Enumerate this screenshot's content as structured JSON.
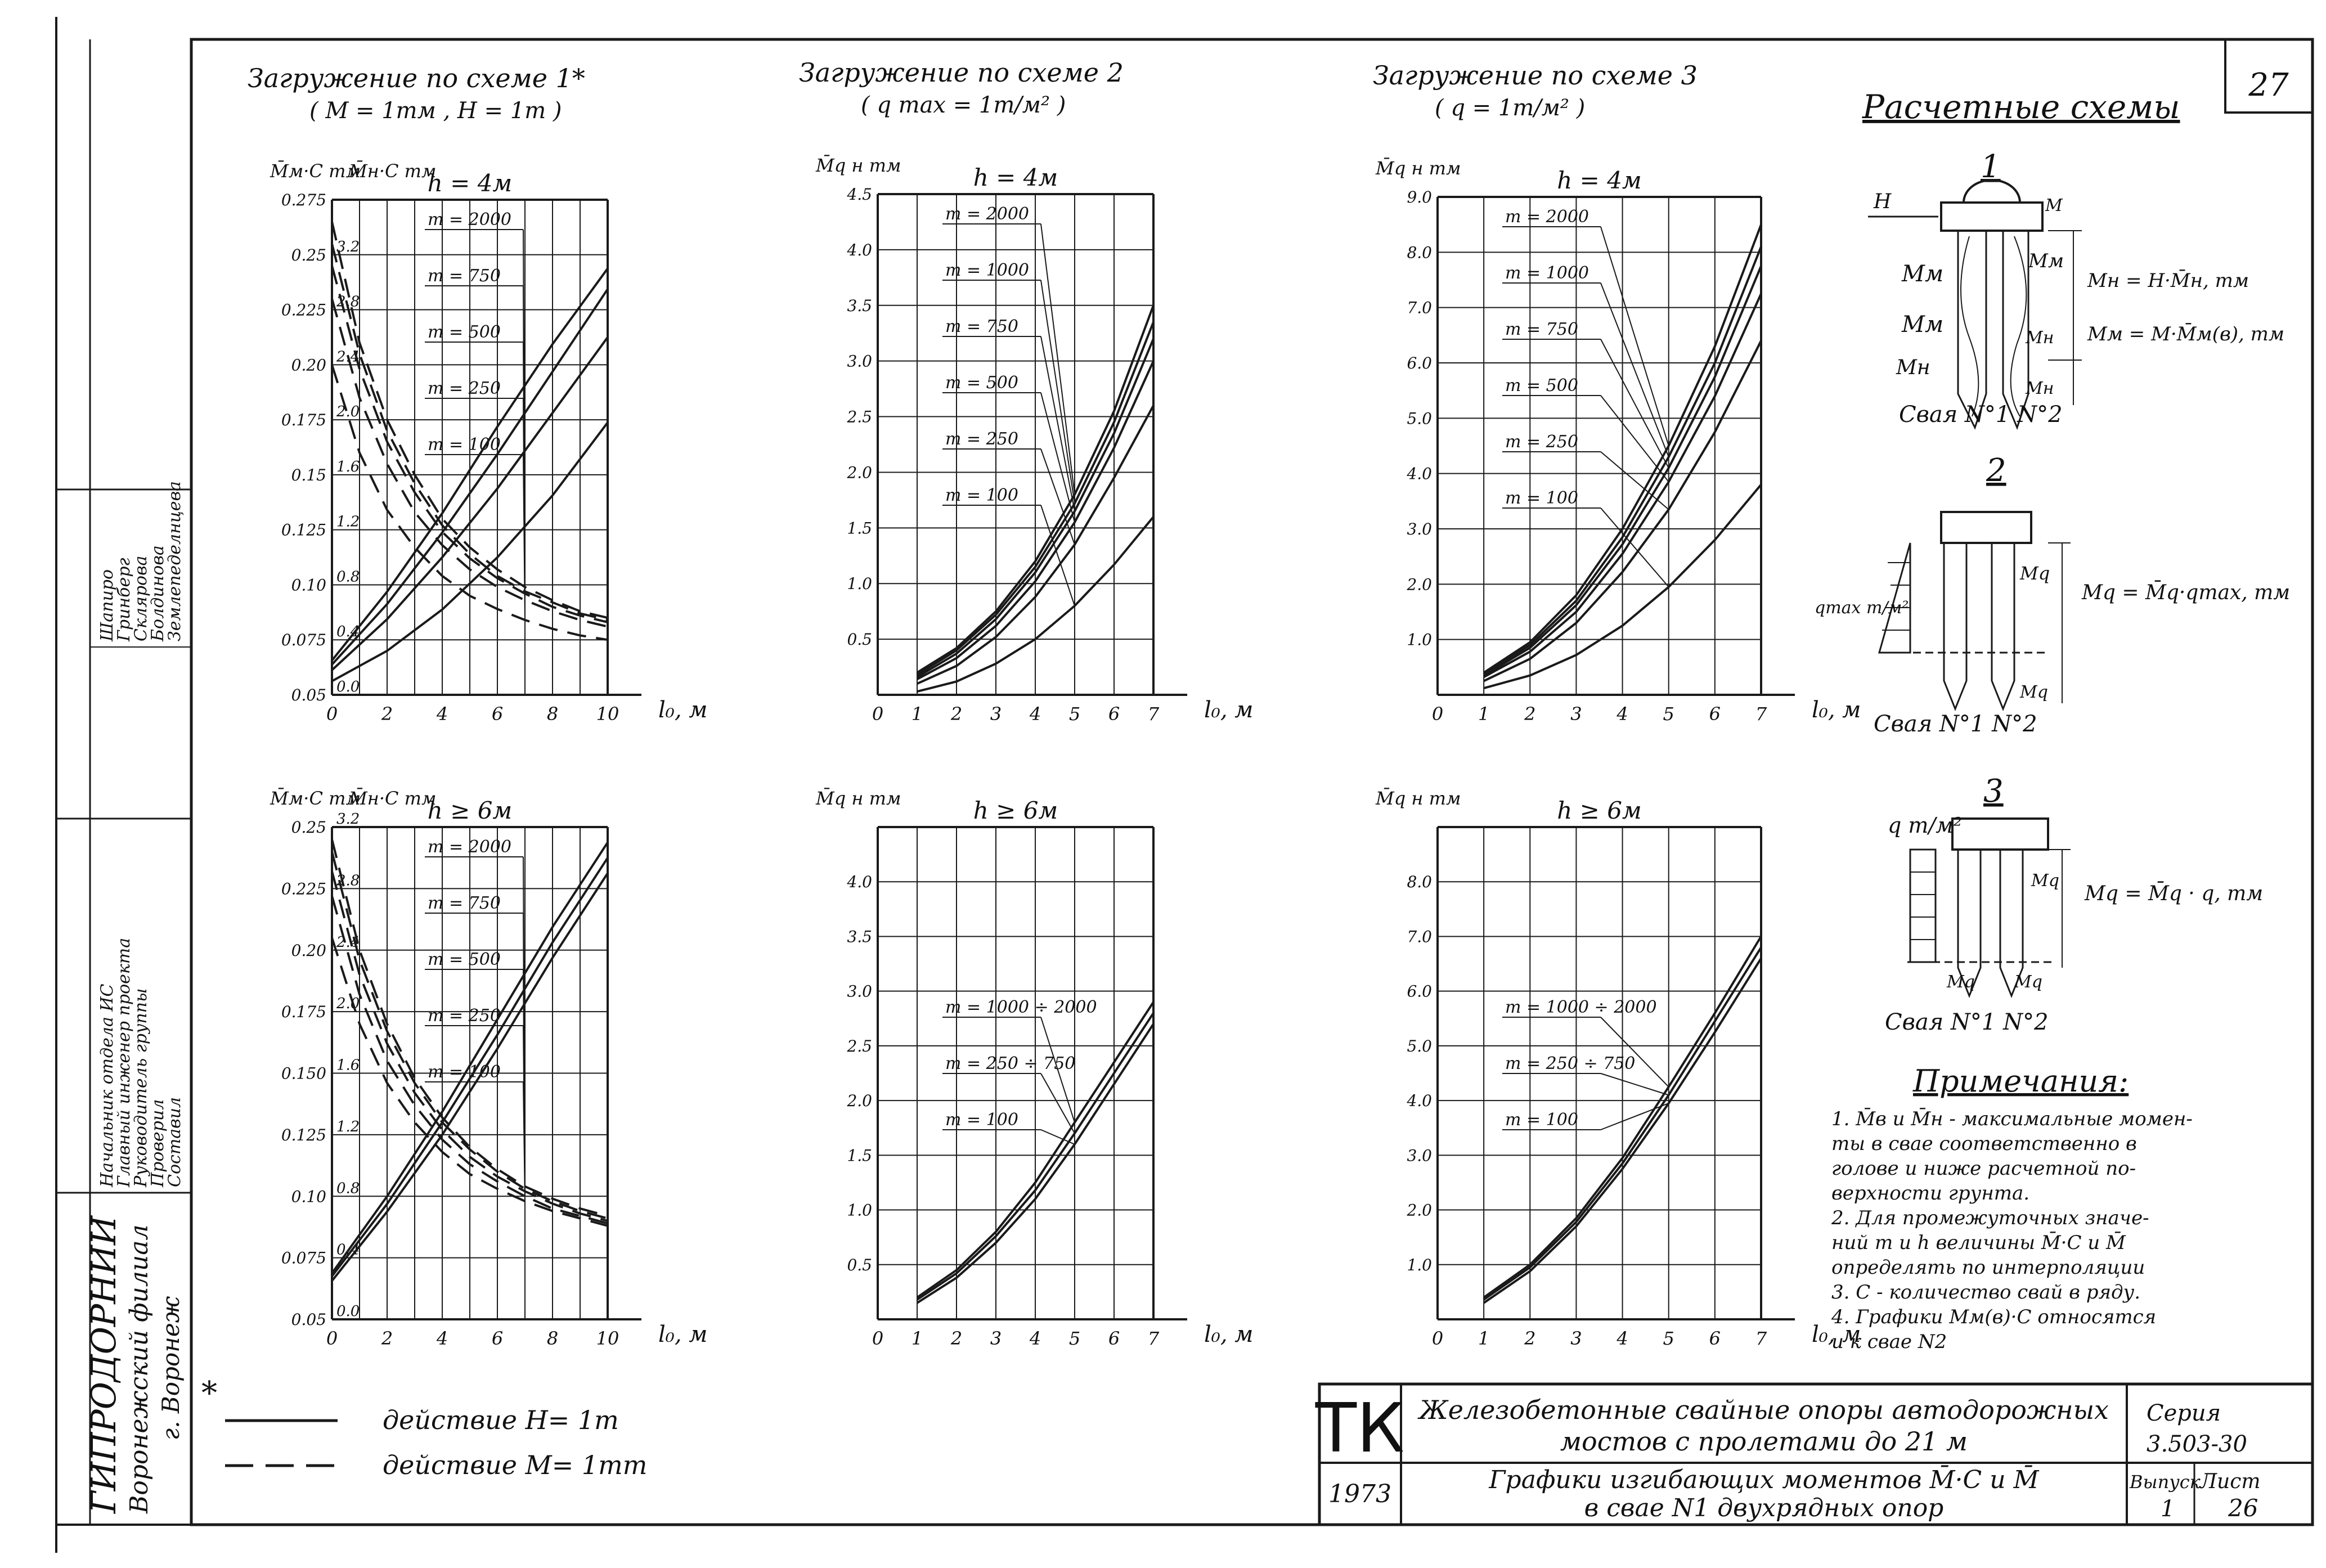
{
  "sheet": {
    "page_number": "27",
    "titleblock": {
      "org": "ГИПРОДОРНИИ",
      "branch": "Воронежский филиал",
      "city": "г. Воронеж",
      "roles": [
        "Начальник отдела ИС",
        "Главный инженер проекта",
        "Руководитель группы",
        "Проверил",
        "Составил"
      ],
      "names": [
        "Шапиро",
        "Гринберг",
        "Склярова",
        "Болдинова",
        "Землепеделнцева"
      ],
      "tk": "ТК",
      "year": "1973",
      "title_line1": "Железобетонные свайные опоры автодорожных",
      "title_line2": "мостов с пролетами до 21 м",
      "subtitle_line1": "Графики изгибающих моментов M̄·C и M̄",
      "subtitle_line2": "в свае N1 двухрядных опор",
      "series_label": "Серия",
      "series_value": "3.503-30",
      "issue_label": "Выпуск",
      "issue_value": "1",
      "sheet_label": "Лист",
      "sheet_value": "26"
    },
    "legend": {
      "marker": "*",
      "solid_text": "действие H= 1m",
      "dashed_text": "действие M= 1mm"
    },
    "schemes": {
      "header": "Расчетные схемы",
      "s1_num": "1",
      "s1_eq1": "Mн = H·M̄н, mм",
      "s1_eq2": "Mм = M·M̄м(в), mм",
      "s1_caption": "Свая N°1  N°2",
      "s2_num": "2",
      "s2_eq": "Mq = M̄q·qmax, mм",
      "s2_load": "qmax т/м²",
      "s2_caption": "Свая N°1  N°2",
      "s3_num": "3",
      "s3_eq": "Mq = M̄q · q, mм",
      "s3_load": "q т/м²",
      "s3_caption": "Свая N°1  N°2"
    },
    "notes": {
      "header": "Примечания:",
      "lines": [
        "1. M̄в и M̄н - максимальные момен-",
        "   ты в свае соответственно в",
        "   голове и ниже расчетной по-",
        "   верхности грунта.",
        "2. Для промежуточных значе-",
        "   ний m и h величины M̄·C и M̄",
        "   определять по интерполяции",
        "3. C - количество свай в ряду.",
        "4. Графики Mм(в)·C относятся",
        "   и к свае N2"
      ]
    }
  },
  "chart_data": [
    {
      "type": "line",
      "id": "s1_h4",
      "title": "Загружение по схеме 1*",
      "subtitle": "( M = 1mм ,  H = 1m )",
      "h_label": "h = 4м",
      "ylabel_left": "M̄м·C  mм",
      "ylabel_right": "M̄н·C  mм",
      "xlabel": "l₀, м",
      "xlim": [
        0,
        10
      ],
      "ylim": [
        0.05,
        0.275
      ],
      "x_ticks": [
        0,
        2,
        4,
        6,
        8,
        10
      ],
      "y_ticks": [
        "0.05",
        "0.075",
        "0.10",
        "0.125",
        "0.15",
        "0.175",
        "0.20",
        "0.225",
        "0.25",
        "0.275"
      ],
      "y2_ticks": [
        "0.0",
        "0.4",
        "0.8",
        "1.2",
        "1.6",
        "2.0",
        "2.4",
        "2.8",
        "3.2"
      ],
      "series": [
        {
          "name": "m = 2000",
          "style": "dashed",
          "x": [
            0,
            1,
            2,
            3,
            4,
            5,
            6,
            7,
            8,
            9,
            10
          ],
          "y": [
            0.265,
            0.21,
            0.175,
            0.15,
            0.13,
            0.117,
            0.107,
            0.099,
            0.093,
            0.088,
            0.085
          ]
        },
        {
          "name": "m = 750",
          "style": "dashed",
          "x": [
            0,
            1,
            2,
            3,
            4,
            5,
            6,
            7,
            8,
            9,
            10
          ],
          "y": [
            0.255,
            0.205,
            0.17,
            0.146,
            0.127,
            0.114,
            0.104,
            0.097,
            0.092,
            0.087,
            0.084
          ]
        },
        {
          "name": "m = 500",
          "style": "dashed",
          "x": [
            0,
            1,
            2,
            3,
            4,
            5,
            6,
            7,
            8,
            9,
            10
          ],
          "y": [
            0.245,
            0.198,
            0.165,
            0.142,
            0.124,
            0.112,
            0.103,
            0.096,
            0.09,
            0.086,
            0.083
          ]
        },
        {
          "name": "m = 250",
          "style": "dashed",
          "x": [
            0,
            1,
            2,
            3,
            4,
            5,
            6,
            7,
            8,
            9,
            10
          ],
          "y": [
            0.23,
            0.185,
            0.155,
            0.133,
            0.118,
            0.107,
            0.099,
            0.093,
            0.088,
            0.084,
            0.081
          ]
        },
        {
          "name": "m = 100",
          "style": "dashed",
          "x": [
            0,
            1,
            2,
            3,
            4,
            5,
            6,
            7,
            8,
            9,
            10
          ],
          "y": [
            0.2,
            0.16,
            0.134,
            0.117,
            0.104,
            0.095,
            0.089,
            0.084,
            0.08,
            0.077,
            0.075
          ]
        },
        {
          "name": "",
          "style": "solid",
          "axis": "right",
          "x": [
            0,
            2,
            4,
            6,
            8,
            10
          ],
          "y": [
            0.25,
            0.75,
            1.32,
            1.95,
            2.55,
            3.1
          ]
        },
        {
          "name": "",
          "style": "solid",
          "axis": "right",
          "x": [
            0,
            2,
            4,
            6,
            8,
            10
          ],
          "y": [
            0.22,
            0.66,
            1.18,
            1.75,
            2.35,
            2.95
          ]
        },
        {
          "name": "",
          "style": "solid",
          "axis": "right",
          "x": [
            0,
            2,
            4,
            6,
            8,
            10
          ],
          "y": [
            0.18,
            0.55,
            1.0,
            1.5,
            2.05,
            2.6
          ]
        },
        {
          "name": "",
          "style": "solid",
          "axis": "right",
          "x": [
            0,
            2,
            4,
            6,
            8,
            10
          ],
          "y": [
            0.1,
            0.32,
            0.62,
            1.0,
            1.45,
            1.98
          ]
        }
      ]
    },
    {
      "type": "line",
      "id": "s2_h4",
      "title": "Загружение по схеме 2",
      "subtitle": "( q max = 1m/м² )",
      "h_label": "h = 4м",
      "ylabel_left": "M̄q н  mм",
      "xlabel": "l₀, м",
      "xlim": [
        0,
        7
      ],
      "ylim": [
        0,
        4.5
      ],
      "x_ticks": [
        0,
        1,
        2,
        3,
        4,
        5,
        6,
        7
      ],
      "y_ticks": [
        "0.5",
        "1.0",
        "1.5",
        "2.0",
        "2.5",
        "3.0",
        "3.5",
        "4.0",
        "4.5"
      ],
      "series": [
        {
          "name": "m = 2000",
          "x": [
            1,
            2,
            3,
            4,
            5,
            6,
            7
          ],
          "y": [
            0.2,
            0.42,
            0.75,
            1.2,
            1.8,
            2.55,
            3.5
          ]
        },
        {
          "name": "m = 1000",
          "x": [
            1,
            2,
            3,
            4,
            5,
            6,
            7
          ],
          "y": [
            0.18,
            0.4,
            0.72,
            1.15,
            1.72,
            2.45,
            3.35
          ]
        },
        {
          "name": "m = 750",
          "x": [
            1,
            2,
            3,
            4,
            5,
            6,
            7
          ],
          "y": [
            0.16,
            0.37,
            0.68,
            1.1,
            1.65,
            2.35,
            3.2
          ]
        },
        {
          "name": "m = 500",
          "x": [
            1,
            2,
            3,
            4,
            5,
            6,
            7
          ],
          "y": [
            0.14,
            0.33,
            0.62,
            1.02,
            1.55,
            2.22,
            3.0
          ]
        },
        {
          "name": "m = 250",
          "x": [
            1,
            2,
            3,
            4,
            5,
            6,
            7
          ],
          "y": [
            0.1,
            0.26,
            0.52,
            0.88,
            1.35,
            1.95,
            2.6
          ]
        },
        {
          "name": "m = 100",
          "x": [
            1,
            2,
            3,
            4,
            5,
            6,
            7
          ],
          "y": [
            0.03,
            0.12,
            0.28,
            0.5,
            0.8,
            1.17,
            1.6
          ]
        }
      ]
    },
    {
      "type": "line",
      "id": "s3_h4",
      "title": "Загружение по схеме 3",
      "subtitle": "( q = 1m/м² )",
      "h_label": "h = 4м",
      "ylabel_left": "M̄q н  mм",
      "xlabel": "l₀, м",
      "xlim": [
        0,
        7
      ],
      "ylim": [
        0,
        9.0
      ],
      "x_ticks": [
        0,
        1,
        2,
        3,
        4,
        5,
        6,
        7
      ],
      "y_ticks": [
        "1.0",
        "2.0",
        "3.0",
        "4.0",
        "5.0",
        "6.0",
        "7.0",
        "8.0",
        "9.0"
      ],
      "series": [
        {
          "name": "m = 2000",
          "x": [
            1,
            2,
            3,
            4,
            5,
            6,
            7
          ],
          "y": [
            0.4,
            0.95,
            1.8,
            3.0,
            4.5,
            6.3,
            8.5
          ]
        },
        {
          "name": "m = 1000",
          "x": [
            1,
            2,
            3,
            4,
            5,
            6,
            7
          ],
          "y": [
            0.38,
            0.9,
            1.7,
            2.85,
            4.3,
            6.0,
            8.1
          ]
        },
        {
          "name": "m = 750",
          "x": [
            1,
            2,
            3,
            4,
            5,
            6,
            7
          ],
          "y": [
            0.35,
            0.85,
            1.62,
            2.72,
            4.1,
            5.75,
            7.75
          ]
        },
        {
          "name": "m = 500",
          "x": [
            1,
            2,
            3,
            4,
            5,
            6,
            7
          ],
          "y": [
            0.32,
            0.78,
            1.5,
            2.55,
            3.85,
            5.4,
            7.25
          ]
        },
        {
          "name": "m = 250",
          "x": [
            1,
            2,
            3,
            4,
            5,
            6,
            7
          ],
          "y": [
            0.25,
            0.65,
            1.3,
            2.22,
            3.35,
            4.75,
            6.4
          ]
        },
        {
          "name": "m = 100",
          "x": [
            1,
            2,
            3,
            4,
            5,
            6,
            7
          ],
          "y": [
            0.12,
            0.35,
            0.72,
            1.25,
            1.95,
            2.8,
            3.8
          ]
        }
      ]
    },
    {
      "type": "line",
      "id": "s1_h6",
      "title": "",
      "h_label": "h ≥ 6м",
      "ylabel_left": "M̄м·C  mм",
      "ylabel_right": "M̄н·C  mм",
      "xlabel": "l₀, м",
      "xlim": [
        0,
        10
      ],
      "ylim": [
        0.05,
        0.25
      ],
      "x_ticks": [
        0,
        2,
        4,
        6,
        8,
        10
      ],
      "y_ticks": [
        "0.05",
        "0.075",
        "0.10",
        "0.125",
        "0.150",
        "0.175",
        "0.20",
        "0.225",
        "0.25"
      ],
      "y2_ticks": [
        "0.0",
        "0.4",
        "0.8",
        "1.2",
        "1.6",
        "2.0",
        "2.4",
        "2.8",
        "3.2"
      ],
      "series": [
        {
          "name": "m = 2000",
          "style": "dashed",
          "x": [
            0,
            1,
            2,
            3,
            4,
            5,
            6,
            7,
            8,
            9,
            10
          ],
          "y": [
            0.245,
            0.2,
            0.17,
            0.148,
            0.132,
            0.12,
            0.111,
            0.104,
            0.099,
            0.095,
            0.092
          ]
        },
        {
          "name": "m = 750",
          "style": "dashed",
          "x": [
            0,
            1,
            2,
            3,
            4,
            5,
            6,
            7,
            8,
            9,
            10
          ],
          "y": [
            0.24,
            0.196,
            0.167,
            0.146,
            0.13,
            0.119,
            0.11,
            0.103,
            0.098,
            0.094,
            0.091
          ]
        },
        {
          "name": "m = 500",
          "style": "dashed",
          "x": [
            0,
            1,
            2,
            3,
            4,
            5,
            6,
            7,
            8,
            9,
            10
          ],
          "y": [
            0.232,
            0.19,
            0.162,
            0.142,
            0.127,
            0.116,
            0.108,
            0.102,
            0.097,
            0.093,
            0.09
          ]
        },
        {
          "name": "m = 250",
          "style": "dashed",
          "x": [
            0,
            1,
            2,
            3,
            4,
            5,
            6,
            7,
            8,
            9,
            10
          ],
          "y": [
            0.222,
            0.182,
            0.155,
            0.137,
            0.123,
            0.113,
            0.106,
            0.1,
            0.095,
            0.092,
            0.089
          ]
        },
        {
          "name": "m = 100",
          "style": "dashed",
          "x": [
            0,
            1,
            2,
            3,
            4,
            5,
            6,
            7,
            8,
            9,
            10
          ],
          "y": [
            0.205,
            0.17,
            0.146,
            0.13,
            0.118,
            0.109,
            0.103,
            0.098,
            0.094,
            0.091,
            0.088
          ]
        },
        {
          "name": "",
          "style": "solid",
          "axis": "right",
          "x": [
            0,
            2,
            4,
            6,
            8,
            10
          ],
          "y": [
            0.3,
            0.8,
            1.35,
            1.95,
            2.55,
            3.1
          ]
        },
        {
          "name": "",
          "style": "solid",
          "axis": "right",
          "x": [
            0,
            2,
            4,
            6,
            8,
            10
          ],
          "y": [
            0.28,
            0.75,
            1.28,
            1.85,
            2.45,
            3.0
          ]
        },
        {
          "name": "",
          "style": "solid",
          "axis": "right",
          "x": [
            0,
            2,
            4,
            6,
            8,
            10
          ],
          "y": [
            0.25,
            0.7,
            1.2,
            1.76,
            2.35,
            2.9
          ]
        }
      ]
    },
    {
      "type": "line",
      "id": "s2_h6",
      "title": "",
      "h_label": "h ≥ 6м",
      "ylabel_left": "M̄q н  mм",
      "xlabel": "l₀, м",
      "xlim": [
        0,
        7
      ],
      "ylim": [
        0,
        4.5
      ],
      "x_ticks": [
        0,
        1,
        2,
        3,
        4,
        5,
        6,
        7
      ],
      "y_ticks": [
        "0.5",
        "1.0",
        "1.5",
        "2.0",
        "2.5",
        "3.0",
        "3.5",
        "4.0"
      ],
      "series": [
        {
          "name": "m = 1000 ÷ 2000",
          "x": [
            1,
            2,
            3,
            4,
            5,
            6,
            7
          ],
          "y": [
            0.2,
            0.45,
            0.8,
            1.25,
            1.8,
            2.35,
            2.9
          ]
        },
        {
          "name": "m = 250 ÷ 750",
          "x": [
            1,
            2,
            3,
            4,
            5,
            6,
            7
          ],
          "y": [
            0.18,
            0.42,
            0.76,
            1.18,
            1.7,
            2.25,
            2.8
          ]
        },
        {
          "name": "m = 100",
          "x": [
            1,
            2,
            3,
            4,
            5,
            6,
            7
          ],
          "y": [
            0.15,
            0.38,
            0.7,
            1.1,
            1.6,
            2.15,
            2.7
          ]
        }
      ]
    },
    {
      "type": "line",
      "id": "s3_h6",
      "title": "",
      "h_label": "h ≥ 6м",
      "ylabel_left": "M̄q н  mм",
      "xlabel": "l₀, м",
      "xlim": [
        0,
        7
      ],
      "ylim": [
        0,
        9.0
      ],
      "x_ticks": [
        0,
        1,
        2,
        3,
        4,
        5,
        6,
        7
      ],
      "y_ticks": [
        "1.0",
        "2.0",
        "3.0",
        "4.0",
        "5.0",
        "6.0",
        "7.0",
        "8.0"
      ],
      "series": [
        {
          "name": "m = 1000 ÷ 2000",
          "x": [
            1,
            2,
            3,
            4,
            5,
            6,
            7
          ],
          "y": [
            0.4,
            1.0,
            1.85,
            2.95,
            4.25,
            5.6,
            7.0
          ]
        },
        {
          "name": "m = 250 ÷ 750",
          "x": [
            1,
            2,
            3,
            4,
            5,
            6,
            7
          ],
          "y": [
            0.36,
            0.95,
            1.78,
            2.85,
            4.1,
            5.45,
            6.8
          ]
        },
        {
          "name": "m = 100",
          "x": [
            1,
            2,
            3,
            4,
            5,
            6,
            7
          ],
          "y": [
            0.3,
            0.88,
            1.7,
            2.75,
            3.95,
            5.25,
            6.6
          ]
        }
      ]
    }
  ]
}
